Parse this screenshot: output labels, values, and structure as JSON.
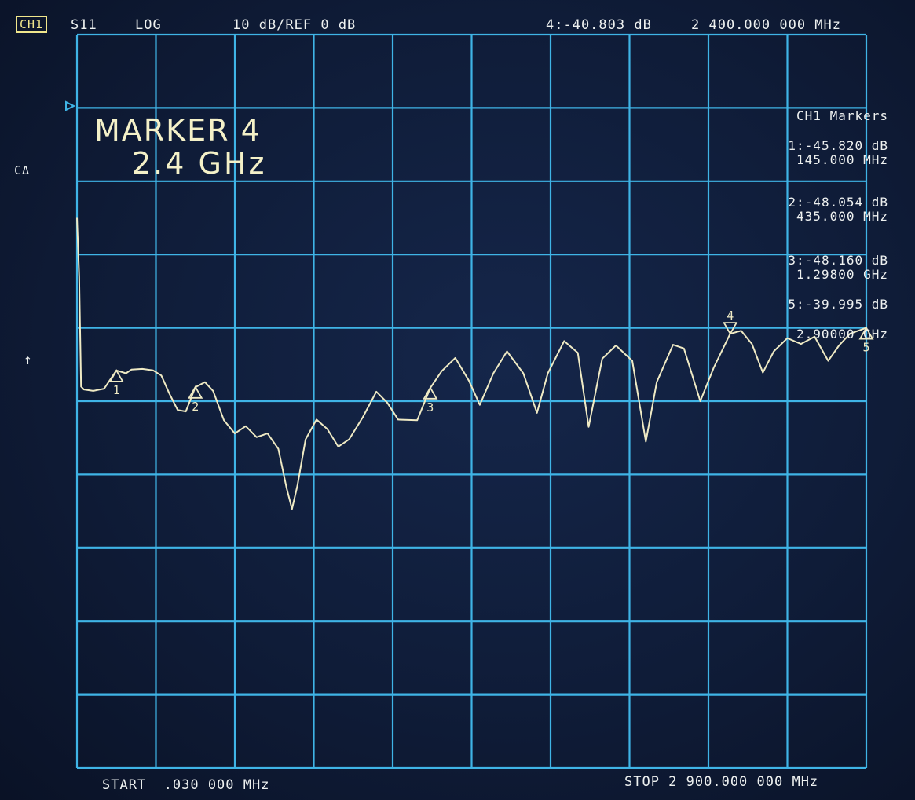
{
  "header": {
    "channel": "CH1",
    "parameter": "S11",
    "format": "LOG",
    "scale": "10 dB/REF 0 dB",
    "active_marker_value": "4:-40.803 dB",
    "active_marker_freq": "2 400.000 000 MHz"
  },
  "side": {
    "cal_label": "CΔ",
    "arrow": "↑"
  },
  "annotation": {
    "title": "MARKER 4",
    "freq": "2.4 GHz"
  },
  "marker_list": {
    "title": "CH1 Markers",
    "items": [
      {
        "value": "1:-45.820 dB",
        "freq": "145.000 MHz"
      },
      {
        "value": "2:-48.054 dB",
        "freq": "435.000 MHz"
      },
      {
        "value": "3:-48.160 dB",
        "freq": "1.29800 GHz"
      },
      {
        "value": "5:-39.995 dB",
        "freq": "2.90000 GHz"
      }
    ]
  },
  "footer": {
    "start": "START  .030 000 MHz",
    "stop": "STOP 2 900.000 000 MHz"
  },
  "colors": {
    "grid": "#3fb4e6",
    "trace": "#efeac4",
    "background": "#0f1c38"
  },
  "chart_data": {
    "type": "line",
    "x_unit": "MHz",
    "y_unit": "dB",
    "xlim": [
      0.03,
      2900
    ],
    "ylim": [
      -100,
      0
    ],
    "reference_dB": 0,
    "scale_dB_per_div": 10,
    "grid": true,
    "series": [
      {
        "points": [
          [
            0.03,
            -25
          ],
          [
            8,
            -33
          ],
          [
            15,
            -48
          ],
          [
            25,
            -48.4
          ],
          [
            60,
            -48.6
          ],
          [
            100,
            -48.3
          ],
          [
            145,
            -45.8
          ],
          [
            180,
            -46.2
          ],
          [
            200,
            -45.7
          ],
          [
            240,
            -45.6
          ],
          [
            280,
            -45.8
          ],
          [
            310,
            -46.5
          ],
          [
            340,
            -49.0
          ],
          [
            370,
            -51.2
          ],
          [
            400,
            -51.4
          ],
          [
            435,
            -48.1
          ],
          [
            470,
            -47.4
          ],
          [
            500,
            -48.6
          ],
          [
            540,
            -52.6
          ],
          [
            580,
            -54.4
          ],
          [
            620,
            -53.4
          ],
          [
            660,
            -54.9
          ],
          [
            700,
            -54.4
          ],
          [
            740,
            -56.5
          ],
          [
            770,
            -61.8
          ],
          [
            790,
            -64.7
          ],
          [
            810,
            -61.5
          ],
          [
            840,
            -55.2
          ],
          [
            880,
            -52.5
          ],
          [
            920,
            -53.8
          ],
          [
            960,
            -56.2
          ],
          [
            1000,
            -55.2
          ],
          [
            1050,
            -52.2
          ],
          [
            1100,
            -48.7
          ],
          [
            1140,
            -50.2
          ],
          [
            1180,
            -52.5
          ],
          [
            1250,
            -52.6
          ],
          [
            1298,
            -48.2
          ],
          [
            1340,
            -45.9
          ],
          [
            1390,
            -44.1
          ],
          [
            1440,
            -47.2
          ],
          [
            1480,
            -50.5
          ],
          [
            1530,
            -46.2
          ],
          [
            1580,
            -43.2
          ],
          [
            1640,
            -46.2
          ],
          [
            1690,
            -51.6
          ],
          [
            1730,
            -46.2
          ],
          [
            1790,
            -41.8
          ],
          [
            1840,
            -43.4
          ],
          [
            1880,
            -53.5
          ],
          [
            1930,
            -44.2
          ],
          [
            1980,
            -42.4
          ],
          [
            2040,
            -44.5
          ],
          [
            2090,
            -55.5
          ],
          [
            2130,
            -47.4
          ],
          [
            2190,
            -42.3
          ],
          [
            2230,
            -42.8
          ],
          [
            2290,
            -50.0
          ],
          [
            2340,
            -45.4
          ],
          [
            2400,
            -40.8
          ],
          [
            2440,
            -40.4
          ],
          [
            2480,
            -42.2
          ],
          [
            2520,
            -46.1
          ],
          [
            2560,
            -43.2
          ],
          [
            2610,
            -41.4
          ],
          [
            2660,
            -42.2
          ],
          [
            2710,
            -41.2
          ],
          [
            2760,
            -44.5
          ],
          [
            2800,
            -42.4
          ],
          [
            2840,
            -40.8
          ],
          [
            2900,
            -40.0
          ]
        ]
      }
    ],
    "markers": [
      {
        "label": "1",
        "x": 145,
        "y": -45.82
      },
      {
        "label": "2",
        "x": 435,
        "y": -48.054
      },
      {
        "label": "3",
        "x": 1298,
        "y": -48.16
      },
      {
        "label": "4",
        "x": 2400,
        "y": -40.803
      },
      {
        "label": "5",
        "x": 2900,
        "y": -39.995
      }
    ]
  }
}
